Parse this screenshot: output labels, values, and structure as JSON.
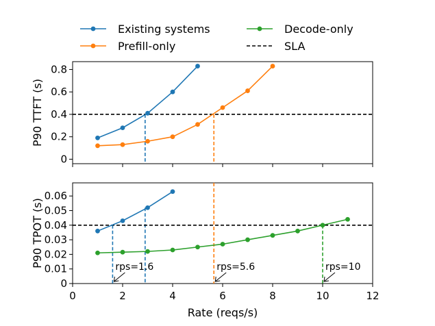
{
  "chart_data": {
    "type": "line",
    "legend": {
      "placement": "top-center",
      "entries": [
        {
          "label": "Existing systems",
          "color": "#1f77b4",
          "style": "line-marker"
        },
        {
          "label": "Prefill-only",
          "color": "#ff7f0e",
          "style": "line-marker"
        },
        {
          "label": "Decode-only",
          "color": "#2ca02c",
          "style": "line-marker"
        },
        {
          "label": "SLA",
          "color": "#000000",
          "style": "dashed"
        }
      ]
    },
    "xlabel": "Rate (reqs/s)",
    "xlim": [
      0,
      12
    ],
    "xticks": [
      0,
      2,
      4,
      6,
      8,
      10,
      12
    ],
    "grid": false,
    "panels": [
      {
        "ylabel": "P90 TTFT (s)",
        "ylim": [
          -0.04,
          0.87
        ],
        "yticks": [
          0,
          0.2,
          0.4,
          0.6,
          0.8
        ],
        "ytick_labels": [
          "0",
          "0.2",
          "0.4",
          "0.6",
          "0.8"
        ],
        "sla": 0.4,
        "series": [
          {
            "name": "Existing systems",
            "color": "#1f77b4",
            "x": [
              1,
              2,
              3,
              4,
              5
            ],
            "y": [
              0.19,
              0.28,
              0.41,
              0.6,
              0.83
            ]
          },
          {
            "name": "Prefill-only",
            "color": "#ff7f0e",
            "x": [
              1,
              2,
              3,
              4,
              5,
              6,
              7,
              8
            ],
            "y": [
              0.12,
              0.13,
              0.16,
              0.2,
              0.31,
              0.46,
              0.61,
              0.83
            ]
          }
        ],
        "vlines": [
          {
            "x": 2.9,
            "color": "#1f77b4",
            "ystart": 0.4
          },
          {
            "x": 5.65,
            "color": "#ff7f0e",
            "ystart": 0.4
          }
        ]
      },
      {
        "ylabel": "P90 TPOT (s)",
        "ylim": [
          0,
          0.069
        ],
        "yticks": [
          0,
          0.01,
          0.02,
          0.03,
          0.04,
          0.05,
          0.06
        ],
        "ytick_labels": [
          "0",
          "0.01",
          "0.02",
          "0.03",
          "0.04",
          "0.05",
          "0.06"
        ],
        "sla": 0.04,
        "series": [
          {
            "name": "Existing systems",
            "color": "#1f77b4",
            "x": [
              1,
              2,
              3,
              4
            ],
            "y": [
              0.036,
              0.043,
              0.052,
              0.063
            ]
          },
          {
            "name": "Decode-only",
            "color": "#2ca02c",
            "x": [
              1,
              2,
              3,
              4,
              5,
              6,
              7,
              8,
              9,
              10,
              11
            ],
            "y": [
              0.021,
              0.0215,
              0.022,
              0.023,
              0.025,
              0.027,
              0.03,
              0.033,
              0.036,
              0.04,
              0.044
            ]
          }
        ],
        "vlines": [
          {
            "x": 1.6,
            "color": "#1f77b4",
            "ystart": 0.04
          },
          {
            "x": 2.9,
            "color": "#1f77b4",
            "ystart": 0.052
          },
          {
            "x": 5.65,
            "color": "#ff7f0e",
            "ystart": 0.069
          },
          {
            "x": 10,
            "color": "#2ca02c",
            "ystart": 0.04
          }
        ],
        "annotations": [
          {
            "text": "rps=1.6",
            "x": 1.6
          },
          {
            "text": "rps=5.6",
            "x": 5.65
          },
          {
            "text": "rps=10",
            "x": 10
          }
        ]
      }
    ]
  }
}
